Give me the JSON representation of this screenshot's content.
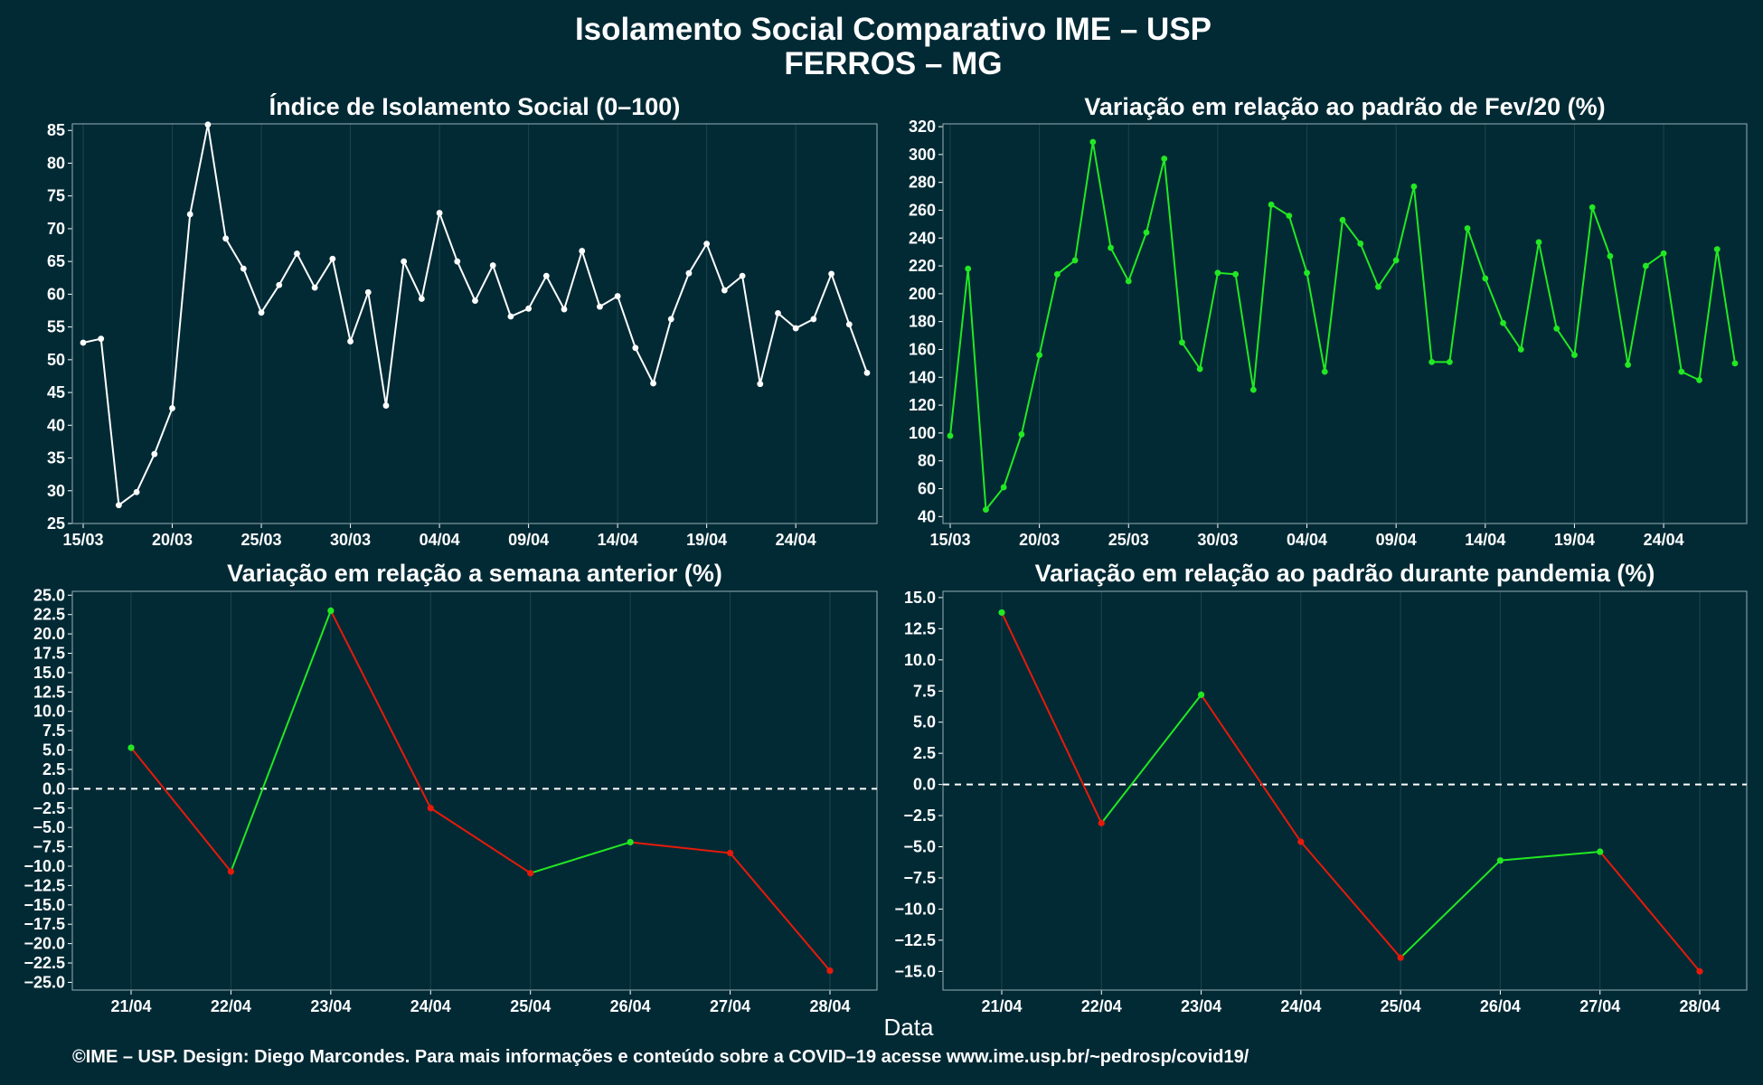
{
  "title_line1": "Isolamento Social Comparativo IME – USP",
  "title_line2": "FERROS – MG",
  "xlabel": "Data",
  "credit": "©IME – USP. Design: Diego Marcondes. Para mais informações e conteúdo sobre a COVID–19 acesse www.ime.usp.br/~pedrosp/covid19/",
  "colors": {
    "background": "#022a35",
    "white": "#ffffff",
    "green": "#22e822",
    "red": "#e61a0a"
  },
  "chart_data": [
    {
      "type": "line",
      "title": "Índice de Isolamento Social (0–100)",
      "x_start": "15/03",
      "x_tick_labels": [
        "15/03",
        "20/03",
        "25/03",
        "30/03",
        "04/04",
        "09/04",
        "14/04",
        "19/04",
        "24/04"
      ],
      "ylim": [
        25,
        86
      ],
      "y_ticks": [
        25,
        30,
        35,
        40,
        45,
        50,
        55,
        60,
        65,
        70,
        75,
        80,
        85
      ],
      "series": [
        {
          "color": "#ffffff",
          "values": [
            52.6,
            53.2,
            27.8,
            29.8,
            35.6,
            42.6,
            72.2,
            85.9,
            68.5,
            63.9,
            57.2,
            61.4,
            66.2,
            61.0,
            65.4,
            52.8,
            60.3,
            43.0,
            65.0,
            59.3,
            72.4,
            65.0,
            59.0,
            64.4,
            56.6,
            57.8,
            62.8,
            57.7,
            66.6,
            58.1,
            59.7,
            51.8,
            46.4,
            56.2,
            63.2,
            67.7,
            60.6,
            62.8,
            46.3,
            57.1,
            54.8,
            56.2,
            63.1,
            55.4,
            48.0
          ]
        }
      ],
      "grid": true
    },
    {
      "type": "line",
      "title": "Variação em relação ao padrão de Fev/20 (%)",
      "x_start": "15/03",
      "x_tick_labels": [
        "15/03",
        "20/03",
        "25/03",
        "30/03",
        "04/04",
        "09/04",
        "14/04",
        "19/04",
        "24/04"
      ],
      "ylim": [
        35,
        322
      ],
      "y_ticks": [
        40,
        60,
        80,
        100,
        120,
        140,
        160,
        180,
        200,
        220,
        240,
        260,
        280,
        300,
        320
      ],
      "series": [
        {
          "color": "#22e822",
          "values": [
            98,
            218,
            45,
            61,
            99,
            156,
            214,
            224,
            309,
            233,
            209,
            244,
            297,
            165,
            146,
            215,
            214,
            131,
            264,
            256,
            215,
            144,
            253,
            236,
            205,
            224,
            277,
            151,
            151,
            247,
            211,
            179,
            160,
            237,
            175,
            156,
            262,
            227,
            149,
            220,
            229,
            144,
            138,
            232,
            150
          ]
        }
      ],
      "grid": true
    },
    {
      "type": "line",
      "title": "Variação em relação a semana anterior (%)",
      "categories": [
        "21/04",
        "22/04",
        "23/04",
        "24/04",
        "25/04",
        "26/04",
        "27/04",
        "28/04"
      ],
      "ylim": [
        -26,
        25.5
      ],
      "y_ticks": [
        -25.0,
        -22.5,
        -20.0,
        -17.5,
        -15.0,
        -12.5,
        -10.0,
        -7.5,
        -5.0,
        -2.5,
        0.0,
        2.5,
        5.0,
        7.5,
        10.0,
        12.5,
        15.0,
        17.5,
        20.0,
        22.5,
        25.0
      ],
      "values": [
        5.3,
        -10.7,
        23.0,
        -2.5,
        -10.9,
        -6.9,
        -8.3,
        -23.5
      ],
      "reference_line": 0,
      "colors_note": "segment green when increasing, red when decreasing",
      "grid": true
    },
    {
      "type": "line",
      "title": "Variação em relação ao padrão durante pandemia (%)",
      "categories": [
        "21/04",
        "22/04",
        "23/04",
        "24/04",
        "25/04",
        "26/04",
        "27/04",
        "28/04"
      ],
      "ylim": [
        -16.5,
        15.5
      ],
      "y_ticks": [
        -15.0,
        -12.5,
        -10.0,
        -7.5,
        -5.0,
        -2.5,
        0.0,
        2.5,
        5.0,
        7.5,
        10.0,
        12.5,
        15.0
      ],
      "values": [
        13.8,
        -3.1,
        7.2,
        -4.6,
        -13.9,
        -6.1,
        -5.4,
        -15.0
      ],
      "reference_line": 0,
      "grid": true
    }
  ]
}
